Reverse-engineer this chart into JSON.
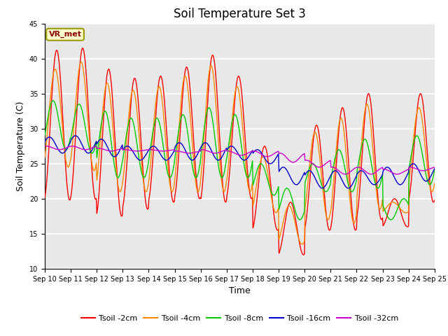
{
  "title": "Soil Temperature Set 3",
  "xlabel": "Time",
  "ylabel": "Soil Temperature (C)",
  "ylim": [
    10,
    45
  ],
  "yticks": [
    10,
    15,
    20,
    25,
    30,
    35,
    40,
    45
  ],
  "x_tick_labels": [
    "Sep 10",
    "Sep 11",
    "Sep 12",
    "Sep 13",
    "Sep 14",
    "Sep 15",
    "Sep 16",
    "Sep 17",
    "Sep 18",
    "Sep 19",
    "Sep 20",
    "Sep 21",
    "Sep 22",
    "Sep 23",
    "Sep 24",
    "Sep 25"
  ],
  "lines": {
    "Tsoil -2cm": {
      "color": "#ff0000",
      "lw": 1.0
    },
    "Tsoil -4cm": {
      "color": "#ff8800",
      "lw": 1.0
    },
    "Tsoil -8cm": {
      "color": "#00cc00",
      "lw": 1.0
    },
    "Tsoil -16cm": {
      "color": "#0000cc",
      "lw": 1.0
    },
    "Tsoil -32cm": {
      "color": "#cc00cc",
      "lw": 1.0
    }
  },
  "annotation_text": "VR_met",
  "plot_bg_color": "#e8e8e8",
  "grid_color": "#ffffff",
  "title_fontsize": 12,
  "tick_fontsize": 7,
  "label_fontsize": 9,
  "legend_fontsize": 8
}
